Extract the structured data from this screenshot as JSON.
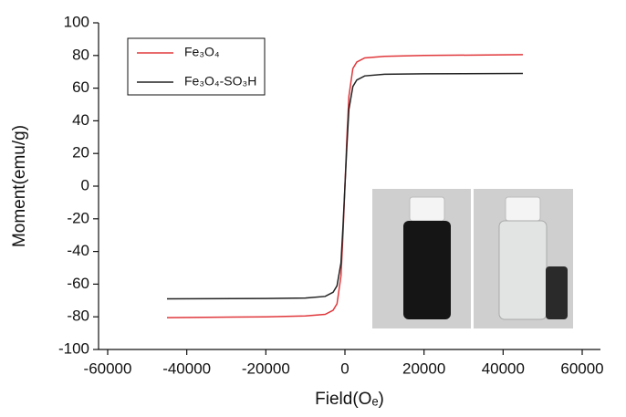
{
  "chart_data": {
    "type": "line",
    "x_label": "Field(Oₑ)",
    "y_label": "Moment(emu/g)",
    "x": [
      -45000,
      -20000,
      -10000,
      -5000,
      -3000,
      -2000,
      -1000,
      -500,
      0,
      500,
      1000,
      2000,
      3000,
      5000,
      10000,
      20000,
      45000
    ],
    "series": [
      {
        "name": "Fe₃O₄",
        "color": "#e0383c",
        "values": [
          -80.5,
          -80,
          -79.5,
          -78.5,
          -76,
          -72,
          -55,
          -30,
          0,
          30,
          55,
          72,
          76,
          78.5,
          79.5,
          80,
          80.5
        ]
      },
      {
        "name": "Fe₃O₄-SO₃H",
        "color": "#222222",
        "values": [
          -69,
          -68.8,
          -68.5,
          -67.5,
          -65,
          -61,
          -47,
          -25,
          0,
          25,
          47,
          61,
          65,
          67.5,
          68.5,
          68.8,
          69
        ]
      }
    ],
    "xlim": [
      -60000,
      60000
    ],
    "xticks": [
      -60000,
      -40000,
      -20000,
      0,
      20000,
      40000,
      60000
    ],
    "ylim": [
      -100,
      100
    ],
    "yticks": [
      -100,
      -80,
      -60,
      -40,
      -20,
      0,
      20,
      40,
      60,
      80,
      100
    ],
    "grid": false,
    "legend": "upper left"
  }
}
